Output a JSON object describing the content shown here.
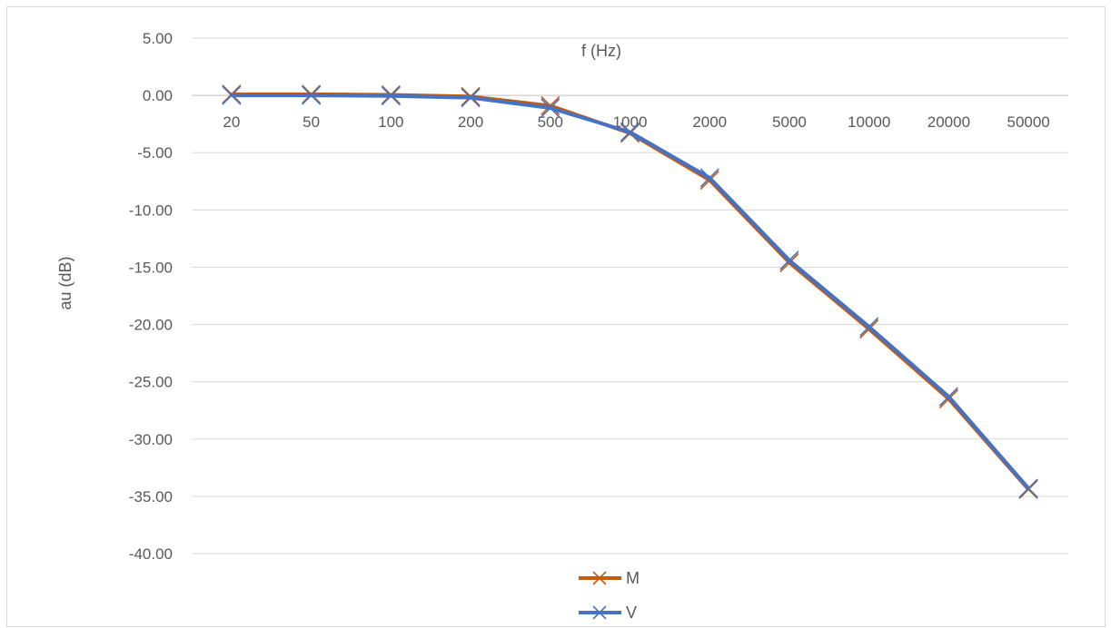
{
  "chart_data": {
    "type": "line",
    "xlabel": "f (Hz)",
    "ylabel": "au (dB)",
    "categories": [
      "20",
      "50",
      "100",
      "200",
      "500",
      "1000",
      "2000",
      "5000",
      "10000",
      "20000",
      "50000"
    ],
    "y_ticks": [
      "5.00",
      "0.00",
      "-5.00",
      "-10.00",
      "-15.00",
      "-20.00",
      "-25.00",
      "-30.00",
      "-35.00",
      "-40.00"
    ],
    "ylim": [
      -40,
      5
    ],
    "grid": true,
    "legend_position": "bottom",
    "series": [
      {
        "name": "M",
        "color": "#c55a11",
        "values": [
          0.1,
          0.1,
          0.05,
          -0.1,
          -0.9,
          -3.3,
          -7.4,
          -14.6,
          -20.4,
          -26.5,
          -34.4
        ]
      },
      {
        "name": "V",
        "color": "#4472c4",
        "values": [
          0.0,
          0.0,
          -0.05,
          -0.2,
          -1.1,
          -3.2,
          -7.2,
          -14.4,
          -20.2,
          -26.3,
          -34.3
        ]
      }
    ]
  }
}
